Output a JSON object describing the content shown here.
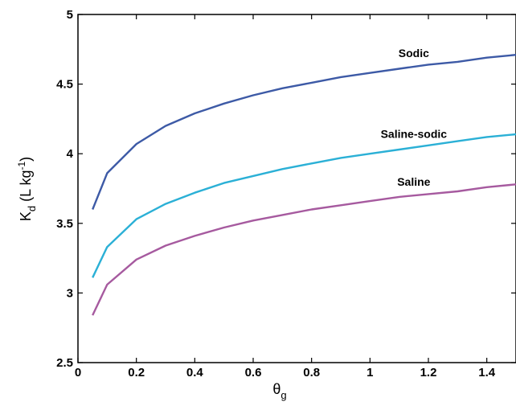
{
  "chart_data": {
    "type": "line",
    "ylabel": {
      "main": "K",
      "sub": "d",
      "rest": " (L kg",
      "sup": "-1",
      "close": ")"
    },
    "xlabel": {
      "main": "θ",
      "sub": "g"
    },
    "xlim": [
      0,
      1.5
    ],
    "ylim": [
      2.5,
      5
    ],
    "xticks": [
      "0",
      "0.2",
      "0.4",
      "0.6",
      "0.8",
      "1",
      "1.2",
      "1.4"
    ],
    "xtick_values": [
      0,
      0.2,
      0.4,
      0.6,
      0.8,
      1.0,
      1.2,
      1.4
    ],
    "yticks": [
      "2.5",
      "3",
      "3.5",
      "4",
      "4.5",
      "5"
    ],
    "ytick_values": [
      2.5,
      3.0,
      3.5,
      4.0,
      4.5,
      5.0
    ],
    "grid": false,
    "legend": "none",
    "series": [
      {
        "name": "Sodic",
        "color": "#3d5aa6",
        "x": [
          0.05,
          0.1,
          0.2,
          0.3,
          0.4,
          0.5,
          0.6,
          0.7,
          0.8,
          0.9,
          1.0,
          1.1,
          1.2,
          1.3,
          1.4,
          1.5
        ],
        "y": [
          3.6,
          3.86,
          4.07,
          4.2,
          4.29,
          4.36,
          4.42,
          4.47,
          4.51,
          4.55,
          4.58,
          4.61,
          4.64,
          4.66,
          4.69,
          4.71
        ]
      },
      {
        "name": "Saline-sodic",
        "color": "#2bb0d6",
        "x": [
          0.05,
          0.1,
          0.2,
          0.3,
          0.4,
          0.5,
          0.6,
          0.7,
          0.8,
          0.9,
          1.0,
          1.1,
          1.2,
          1.3,
          1.4,
          1.5
        ],
        "y": [
          3.11,
          3.33,
          3.53,
          3.64,
          3.72,
          3.79,
          3.84,
          3.89,
          3.93,
          3.97,
          4.0,
          4.03,
          4.06,
          4.09,
          4.12,
          4.14
        ]
      },
      {
        "name": "Saline",
        "color": "#a65a9f",
        "x": [
          0.05,
          0.1,
          0.2,
          0.3,
          0.4,
          0.5,
          0.6,
          0.7,
          0.8,
          0.9,
          1.0,
          1.1,
          1.2,
          1.3,
          1.4,
          1.5
        ],
        "y": [
          2.84,
          3.06,
          3.24,
          3.34,
          3.41,
          3.47,
          3.52,
          3.56,
          3.6,
          3.63,
          3.66,
          3.69,
          3.71,
          3.73,
          3.76,
          3.78
        ]
      }
    ]
  }
}
